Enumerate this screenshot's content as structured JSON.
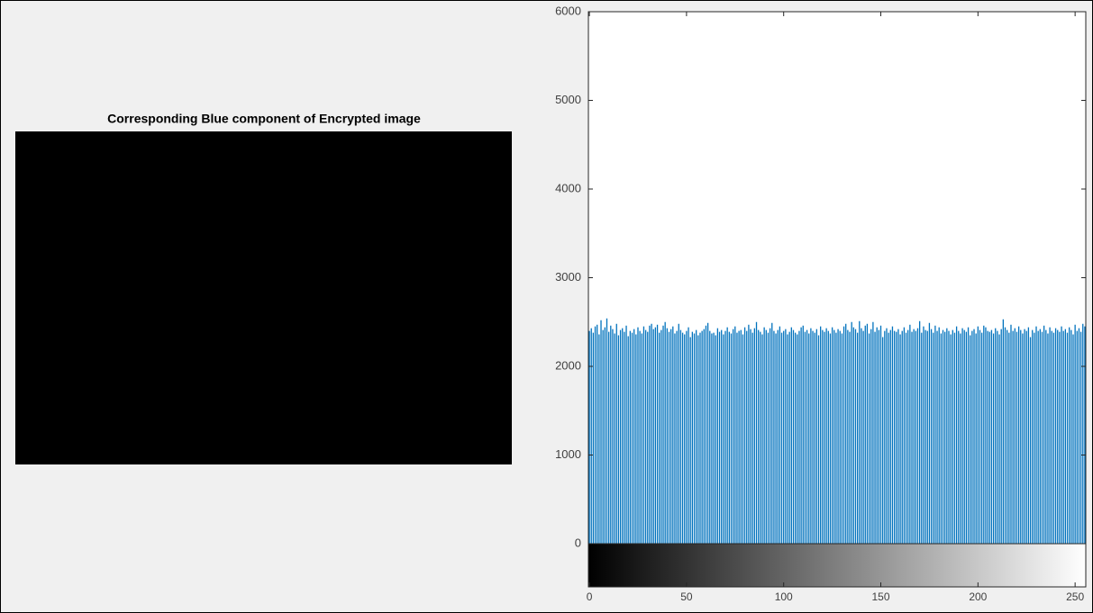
{
  "image_title": "Corresponding Blue component of Encrypted image",
  "chart_data": {
    "type": "bar",
    "color": "#0072bd",
    "colorbar": true,
    "xlim": [
      -0.5,
      255.5
    ],
    "xticks": [
      0,
      50,
      100,
      150,
      200,
      250
    ],
    "ylim": [
      0,
      6000
    ],
    "yticks": [
      0,
      1000,
      2000,
      3000,
      4000,
      5000,
      6000
    ],
    "x": [
      0,
      1,
      2,
      3,
      4,
      5,
      6,
      7,
      8,
      9,
      10,
      11,
      12,
      13,
      14,
      15,
      16,
      17,
      18,
      19,
      20,
      21,
      22,
      23,
      24,
      25,
      26,
      27,
      28,
      29,
      30,
      31,
      32,
      33,
      34,
      35,
      36,
      37,
      38,
      39,
      40,
      41,
      42,
      43,
      44,
      45,
      46,
      47,
      48,
      49,
      50,
      51,
      52,
      53,
      54,
      55,
      56,
      57,
      58,
      59,
      60,
      61,
      62,
      63,
      64,
      65,
      66,
      67,
      68,
      69,
      70,
      71,
      72,
      73,
      74,
      75,
      76,
      77,
      78,
      79,
      80,
      81,
      82,
      83,
      84,
      85,
      86,
      87,
      88,
      89,
      90,
      91,
      92,
      93,
      94,
      95,
      96,
      97,
      98,
      99,
      100,
      101,
      102,
      103,
      104,
      105,
      106,
      107,
      108,
      109,
      110,
      111,
      112,
      113,
      114,
      115,
      116,
      117,
      118,
      119,
      120,
      121,
      122,
      123,
      124,
      125,
      126,
      127,
      128,
      129,
      130,
      131,
      132,
      133,
      134,
      135,
      136,
      137,
      138,
      139,
      140,
      141,
      142,
      143,
      144,
      145,
      146,
      147,
      148,
      149,
      150,
      151,
      152,
      153,
      154,
      155,
      156,
      157,
      158,
      159,
      160,
      161,
      162,
      163,
      164,
      165,
      166,
      167,
      168,
      169,
      170,
      171,
      172,
      173,
      174,
      175,
      176,
      177,
      178,
      179,
      180,
      181,
      182,
      183,
      184,
      185,
      186,
      187,
      188,
      189,
      190,
      191,
      192,
      193,
      194,
      195,
      196,
      197,
      198,
      199,
      200,
      201,
      202,
      203,
      204,
      205,
      206,
      207,
      208,
      209,
      210,
      211,
      212,
      213,
      214,
      215,
      216,
      217,
      218,
      219,
      220,
      221,
      222,
      223,
      224,
      225,
      226,
      227,
      228,
      229,
      230,
      231,
      232,
      233,
      234,
      235,
      236,
      237,
      238,
      239,
      240,
      241,
      242,
      243,
      244,
      245,
      246,
      247,
      248,
      249,
      250,
      251,
      252,
      253,
      254,
      255
    ],
    "values": [
      2400,
      2430,
      2380,
      2450,
      2470,
      2360,
      2520,
      2410,
      2440,
      2540,
      2390,
      2460,
      2420,
      2370,
      2480,
      2350,
      2410,
      2430,
      2390,
      2460,
      2340,
      2400,
      2380,
      2420,
      2360,
      2440,
      2400,
      2370,
      2450,
      2410,
      2390,
      2460,
      2480,
      2420,
      2440,
      2470,
      2380,
      2410,
      2460,
      2500,
      2430,
      2390,
      2420,
      2450,
      2370,
      2400,
      2480,
      2410,
      2380,
      2360,
      2400,
      2440,
      2330,
      2390,
      2370,
      2410,
      2350,
      2380,
      2400,
      2420,
      2460,
      2490,
      2400,
      2370,
      2380,
      2350,
      2430,
      2390,
      2410,
      2360,
      2400,
      2440,
      2390,
      2370,
      2420,
      2450,
      2380,
      2400,
      2410,
      2360,
      2440,
      2400,
      2470,
      2420,
      2380,
      2430,
      2500,
      2410,
      2390,
      2360,
      2440,
      2410,
      2380,
      2430,
      2490,
      2400,
      2370,
      2410,
      2450,
      2380,
      2400,
      2420,
      2360,
      2390,
      2440,
      2410,
      2380,
      2360,
      2400,
      2440,
      2460,
      2390,
      2410,
      2370,
      2430,
      2400,
      2380,
      2420,
      2350,
      2450,
      2410,
      2390,
      2430,
      2400,
      2370,
      2440,
      2410,
      2380,
      2420,
      2400,
      2370,
      2450,
      2480,
      2410,
      2390,
      2500,
      2440,
      2420,
      2380,
      2510,
      2430,
      2400,
      2460,
      2480,
      2370,
      2420,
      2500,
      2390,
      2440,
      2410,
      2460,
      2330,
      2400,
      2430,
      2380,
      2410,
      2450,
      2400,
      2390,
      2420,
      2360,
      2400,
      2440,
      2380,
      2410,
      2470,
      2390,
      2420,
      2400,
      2430,
      2510,
      2380,
      2450,
      2410,
      2400,
      2490,
      2420,
      2380,
      2460,
      2400,
      2440,
      2370,
      2410,
      2390,
      2430,
      2400,
      2360,
      2410,
      2380,
      2450,
      2400,
      2370,
      2430,
      2410,
      2390,
      2440,
      2350,
      2400,
      2420,
      2370,
      2450,
      2410,
      2380,
      2460,
      2440,
      2400,
      2390,
      2410,
      2370,
      2430,
      2400,
      2360,
      2420,
      2530,
      2440,
      2410,
      2380,
      2470,
      2400,
      2430,
      2390,
      2450,
      2410,
      2370,
      2420,
      2400,
      2440,
      2330,
      2410,
      2380,
      2450,
      2400,
      2420,
      2390,
      2460,
      2410,
      2370,
      2440,
      2400,
      2380,
      2430,
      2410,
      2390,
      2450,
      2400,
      2420,
      2380,
      2440,
      2410,
      2360,
      2470,
      2400,
      2430,
      2390,
      2480,
      2450
    ]
  }
}
